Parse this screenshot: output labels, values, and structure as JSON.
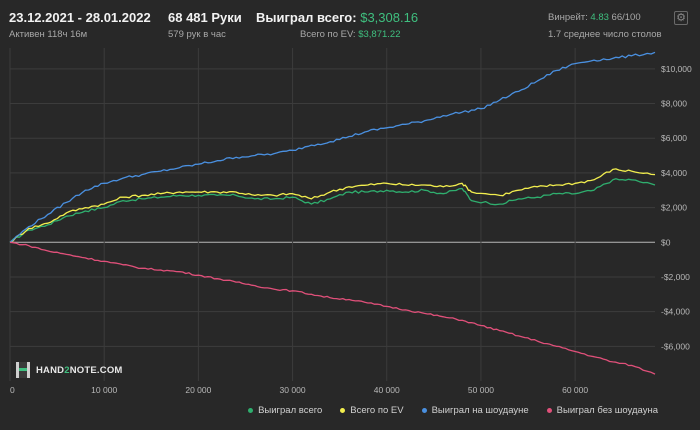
{
  "header": {
    "date_range": "23.12.2021 - 28.01.2022",
    "active": "Активен 118ч 16м",
    "hands": "68 481 Руки",
    "hands_rate": "579 рук в час",
    "won_total_label": "Выиграл всего:",
    "won_total_value": "$3,308.16",
    "ev_label": "Всего по EV:",
    "ev_value": "$3,871.22",
    "winrate_label": "Винрейт:",
    "winrate_value": "4.83",
    "winrate_rest": "66/100",
    "tables_avg": "1.7 среднее число столов"
  },
  "logo": {
    "part1": "HAND",
    "part2": "2",
    "part3": "NOTE.COM"
  },
  "colors": {
    "won": "#2fae6e",
    "ev": "#f2ee4e",
    "showdown": "#4a90e0",
    "no_showdown": "#e0507a",
    "grid": "#3c3c3c",
    "zero": "#b8b8b8"
  },
  "chart_data": {
    "type": "line",
    "xlim": [
      0,
      68481
    ],
    "ylim": [
      -8000,
      11200
    ],
    "x_ticks": [
      0,
      10000,
      20000,
      30000,
      40000,
      50000,
      60000
    ],
    "x_tick_labels": [
      "0",
      "10 000",
      "20 000",
      "30 000",
      "40 000",
      "50 000",
      "60 000"
    ],
    "y_ticks": [
      10000,
      8000,
      6000,
      4000,
      2000,
      0,
      -2000,
      -4000,
      -6000
    ],
    "y_tick_labels": [
      "$10,000",
      "$8,000",
      "$6,000",
      "$4,000",
      "$2,000",
      "$0",
      "-$2,000",
      "-$4,000",
      "-$6,000"
    ],
    "legend_position": "bottom-right",
    "series": [
      {
        "name": "Выиграл всего",
        "key": "won",
        "x": [
          0,
          2000,
          4000,
          6000,
          8000,
          10000,
          12000,
          14000,
          16000,
          18000,
          20000,
          22000,
          24000,
          26000,
          28000,
          30000,
          32000,
          34000,
          36000,
          38000,
          40000,
          42000,
          44000,
          46000,
          48000,
          49000,
          52000,
          54000,
          56000,
          58000,
          60000,
          62000,
          64000,
          66000,
          68481
        ],
        "y": [
          0,
          700,
          1000,
          1500,
          1800,
          2000,
          2400,
          2500,
          2600,
          2700,
          2700,
          2700,
          2700,
          2500,
          2500,
          2600,
          2200,
          2500,
          2900,
          2900,
          3000,
          2900,
          3000,
          2800,
          3100,
          2400,
          2200,
          2500,
          2600,
          2800,
          2800,
          3000,
          3600,
          3600,
          3300
        ]
      },
      {
        "name": "Всего по EV",
        "key": "ev",
        "x": [
          0,
          2000,
          4000,
          6000,
          8000,
          10000,
          12000,
          14000,
          16000,
          18000,
          20000,
          22000,
          24000,
          26000,
          28000,
          30000,
          32000,
          34000,
          36000,
          38000,
          40000,
          42000,
          44000,
          46000,
          48000,
          49000,
          52000,
          54000,
          56000,
          58000,
          60000,
          62000,
          64000,
          66000,
          68481
        ],
        "y": [
          0,
          800,
          1100,
          1700,
          2000,
          2200,
          2600,
          2700,
          2800,
          2900,
          2900,
          2900,
          2900,
          2700,
          2700,
          2800,
          2500,
          2900,
          3200,
          3300,
          3400,
          3300,
          3300,
          3200,
          3400,
          2900,
          2700,
          3000,
          3200,
          3300,
          3400,
          3600,
          4200,
          4100,
          3900
        ]
      },
      {
        "name": "Выиграл на шоудауне",
        "key": "showdown",
        "x": [
          0,
          2000,
          4000,
          6000,
          8000,
          10000,
          12000,
          14000,
          16000,
          18000,
          20000,
          22000,
          24000,
          26000,
          28000,
          30000,
          32000,
          34000,
          36000,
          38000,
          40000,
          42000,
          44000,
          46000,
          48000,
          50000,
          52000,
          54000,
          56000,
          58000,
          60000,
          62000,
          64000,
          66000,
          68481
        ],
        "y": [
          0,
          900,
          1600,
          2300,
          3000,
          3400,
          3700,
          3900,
          4100,
          4300,
          4500,
          4700,
          4900,
          5000,
          5100,
          5300,
          5600,
          5800,
          6100,
          6400,
          6600,
          6800,
          7000,
          7300,
          7500,
          7700,
          8200,
          8700,
          9300,
          9900,
          10300,
          10500,
          10600,
          10750,
          10950
        ]
      },
      {
        "name": "Выиграл без шоудауна",
        "key": "no_showdown",
        "x": [
          0,
          2000,
          4000,
          6000,
          8000,
          10000,
          12000,
          14000,
          16000,
          18000,
          20000,
          22000,
          24000,
          26000,
          28000,
          30000,
          32000,
          34000,
          36000,
          38000,
          40000,
          42000,
          44000,
          46000,
          48000,
          50000,
          52000,
          54000,
          56000,
          58000,
          60000,
          62000,
          64000,
          66000,
          68481
        ],
        "y": [
          0,
          -200,
          -500,
          -700,
          -900,
          -1100,
          -1300,
          -1500,
          -1600,
          -1700,
          -1900,
          -2100,
          -2300,
          -2500,
          -2700,
          -2800,
          -3000,
          -3200,
          -3300,
          -3500,
          -3700,
          -3900,
          -4100,
          -4300,
          -4500,
          -4800,
          -5100,
          -5400,
          -5700,
          -6000,
          -6300,
          -6600,
          -6900,
          -7100,
          -7600
        ]
      }
    ]
  }
}
